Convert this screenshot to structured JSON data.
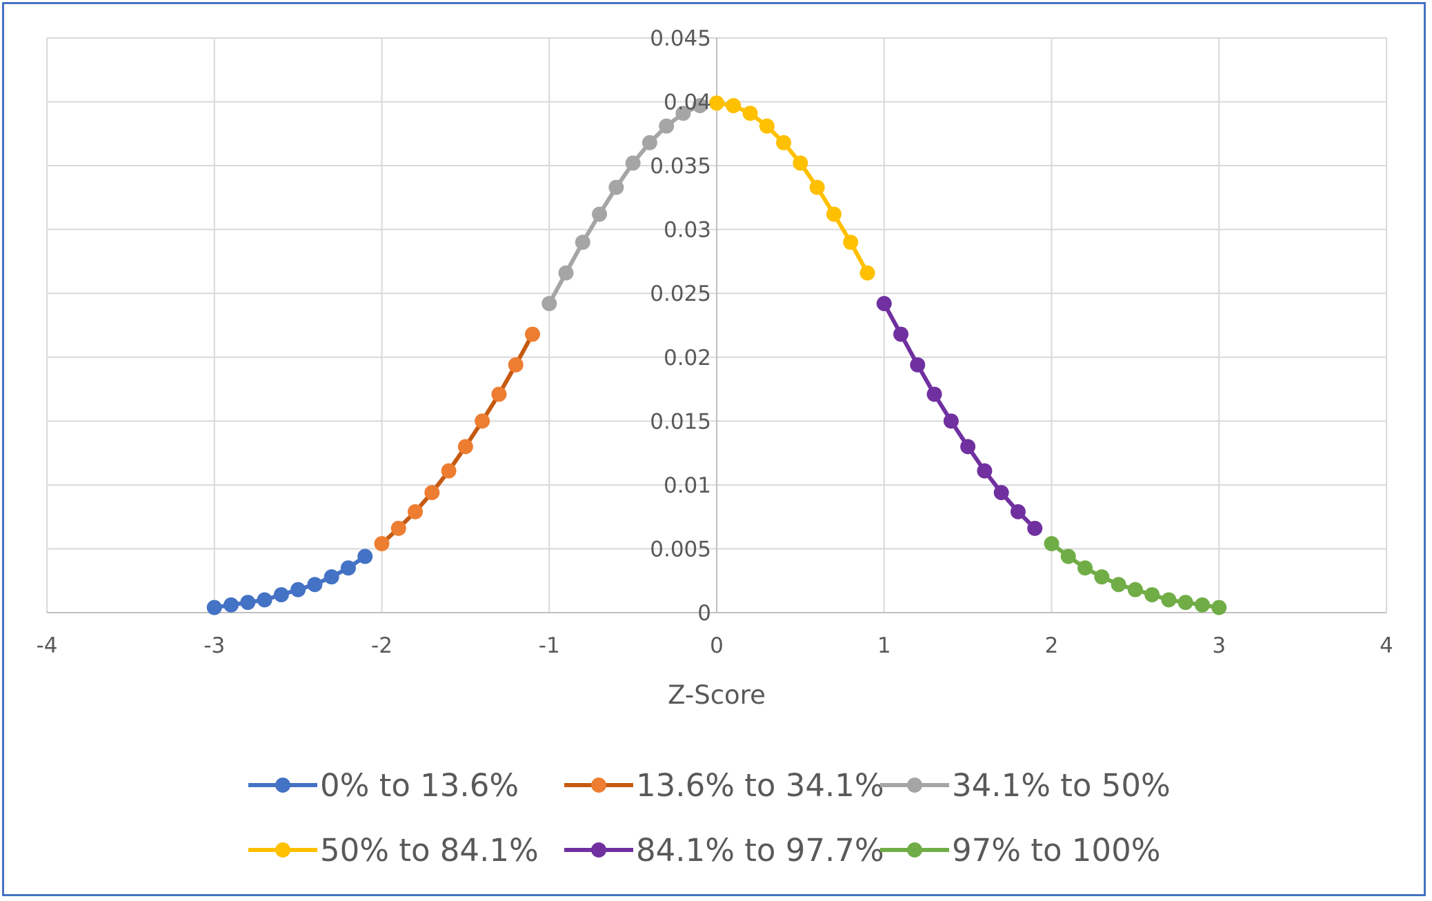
{
  "chart_data": {
    "type": "scatter",
    "title": "",
    "xlabel": "Z-Score",
    "ylabel": "",
    "xlim": [
      -4,
      4
    ],
    "ylim": [
      0,
      0.045
    ],
    "xticks": [
      "-4",
      "-3",
      "-2",
      "-1",
      "0",
      "1",
      "2",
      "3",
      "4"
    ],
    "yticks": [
      "0",
      "0.005",
      "0.01",
      "0.015",
      "0.02",
      "0.025",
      "0.03",
      "0.035",
      "0.04",
      "0.045"
    ],
    "grid": true,
    "legend_position": "bottom",
    "series": [
      {
        "name": "0% to 13.6%",
        "color": "#4472c4",
        "x": [
          -3,
          -2.9,
          -2.8,
          -2.7,
          -2.6,
          -2.5,
          -2.4,
          -2.3,
          -2.2,
          -2.1
        ],
        "y": [
          0.0004,
          0.0006,
          0.0008,
          0.001,
          0.0014,
          0.0018,
          0.0022,
          0.0028,
          0.0035,
          0.0044
        ]
      },
      {
        "name": "13.6% to 34.1%",
        "color": "#ed7d31",
        "line_color": "#c55a11",
        "x": [
          -2,
          -1.9,
          -1.8,
          -1.7,
          -1.6,
          -1.5,
          -1.4,
          -1.3,
          -1.2,
          -1.1
        ],
        "y": [
          0.0054,
          0.0066,
          0.0079,
          0.0094,
          0.0111,
          0.013,
          0.015,
          0.0171,
          0.0194,
          0.0218
        ]
      },
      {
        "name": "34.1% to 50%",
        "color": "#a5a5a5",
        "x": [
          -1,
          -0.9,
          -0.8,
          -0.7,
          -0.6,
          -0.5,
          -0.4,
          -0.3,
          -0.2,
          -0.1
        ],
        "y": [
          0.0242,
          0.0266,
          0.029,
          0.0312,
          0.0333,
          0.0352,
          0.0368,
          0.0381,
          0.0391,
          0.0397
        ]
      },
      {
        "name": "50% to 84.1%",
        "color": "#ffc000",
        "x": [
          0,
          0.1,
          0.2,
          0.3,
          0.4,
          0.5,
          0.6,
          0.7,
          0.8,
          0.9
        ],
        "y": [
          0.0399,
          0.0397,
          0.0391,
          0.0381,
          0.0368,
          0.0352,
          0.0333,
          0.0312,
          0.029,
          0.0266
        ]
      },
      {
        "name": "84.1% to 97.7%",
        "color": "#7030a0",
        "x": [
          1,
          1.1,
          1.2,
          1.3,
          1.4,
          1.5,
          1.6,
          1.7,
          1.8,
          1.9
        ],
        "y": [
          0.0242,
          0.0218,
          0.0194,
          0.0171,
          0.015,
          0.013,
          0.0111,
          0.0094,
          0.0079,
          0.0066
        ]
      },
      {
        "name": "97% to 100%",
        "color": "#70ad47",
        "x": [
          2,
          2.1,
          2.2,
          2.3,
          2.4,
          2.5,
          2.6,
          2.7,
          2.8,
          2.9,
          3
        ],
        "y": [
          0.0054,
          0.0044,
          0.0035,
          0.0028,
          0.0022,
          0.0018,
          0.0014,
          0.001,
          0.0008,
          0.0006,
          0.0004
        ]
      }
    ]
  }
}
